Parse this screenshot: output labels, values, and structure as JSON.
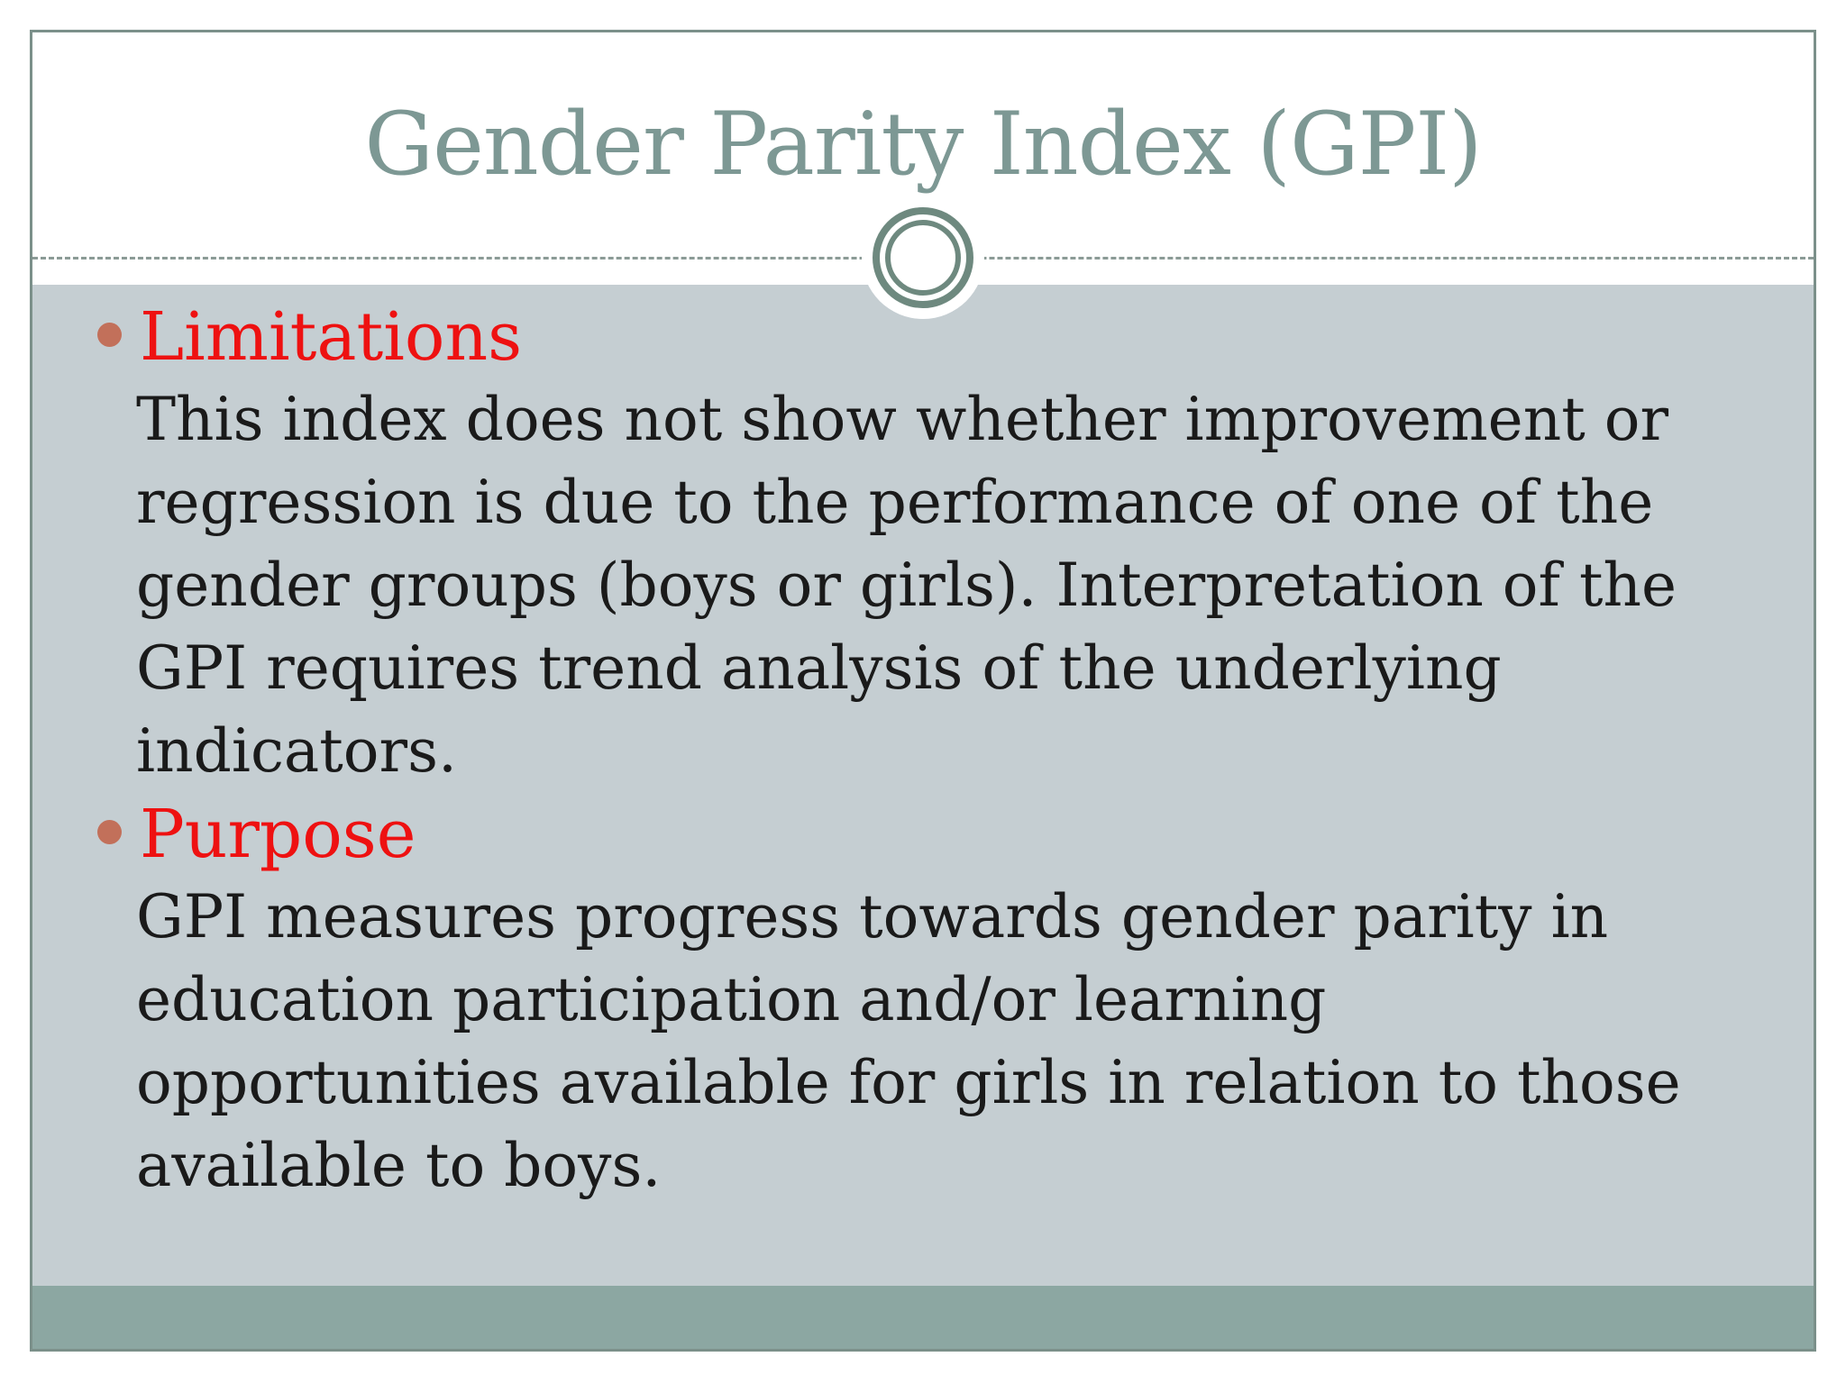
{
  "slide": {
    "title": "Gender Parity Index (GPI)",
    "bullets": [
      {
        "heading": "Limitations",
        "body_lines": [
          "This index does not show whether improvement or",
          "regression is due to the performance of one of the",
          "gender groups (boys or girls). Interpretation of the",
          "GPI requires trend analysis of the underlying",
          "indicators."
        ]
      },
      {
        "heading": "Purpose",
        "body_lines": [
          "GPI measures progress towards gender parity in",
          "education participation and/or learning",
          "opportunities available for girls in relation to those",
          "available to boys."
        ]
      }
    ],
    "colors": {
      "title_text": "#7d9894",
      "heading_text": "#ee1111",
      "bullet_dot": "#c2705a",
      "body_text": "#1a1a1a",
      "body_background": "#c5ced2",
      "footer_bar": "#8ca7a2",
      "slide_border": "#7b908a",
      "ornament_ring": "#6e897f"
    }
  }
}
